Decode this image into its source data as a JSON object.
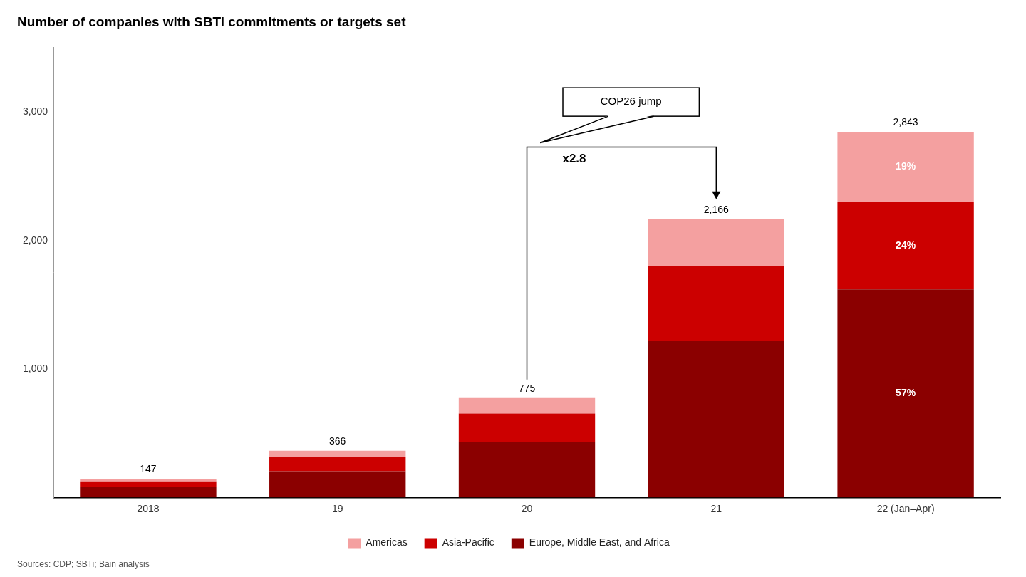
{
  "chart_data": {
    "type": "bar",
    "title": "Number of companies with SBTi commitments or targets set",
    "source": "Sources: CDP; SBTi; Bain analysis",
    "categories": [
      "2018",
      "19",
      "20",
      "21",
      "22 (Jan–Apr)"
    ],
    "series": [
      {
        "name": "Europe, Middle East, and Africa",
        "color": "#8B0000",
        "values": [
          83,
          207,
          437,
          1220,
          1620
        ]
      },
      {
        "name": "Asia-Pacific",
        "color": "#CC0000",
        "values": [
          44,
          110,
          218,
          580,
          682
        ]
      },
      {
        "name": "Americas",
        "color": "#F4A0A0",
        "values": [
          20,
          49,
          120,
          366,
          541
        ]
      }
    ],
    "stacked": true,
    "totals": [
      147,
      366,
      775,
      2166,
      2843
    ],
    "total_labels": [
      "147",
      "366",
      "775",
      "2,166",
      "2,843"
    ],
    "shares": {
      "category": "22 (Jan–Apr)",
      "values": [
        57,
        24,
        19
      ],
      "labels": [
        "57%",
        "24%",
        "19%"
      ]
    },
    "bracket": {
      "from": "20",
      "to": "21",
      "label": "x2.8",
      "callout": "COP26 jump"
    },
    "ylim": [
      0,
      3500
    ],
    "yticks": [
      {
        "value": 0,
        "label": ""
      },
      {
        "value": 1000,
        "label": "1,000"
      },
      {
        "value": 2000,
        "label": "2,000"
      },
      {
        "value": 3000,
        "label": "3,000"
      }
    ],
    "grid": false,
    "legend": "bottom"
  }
}
